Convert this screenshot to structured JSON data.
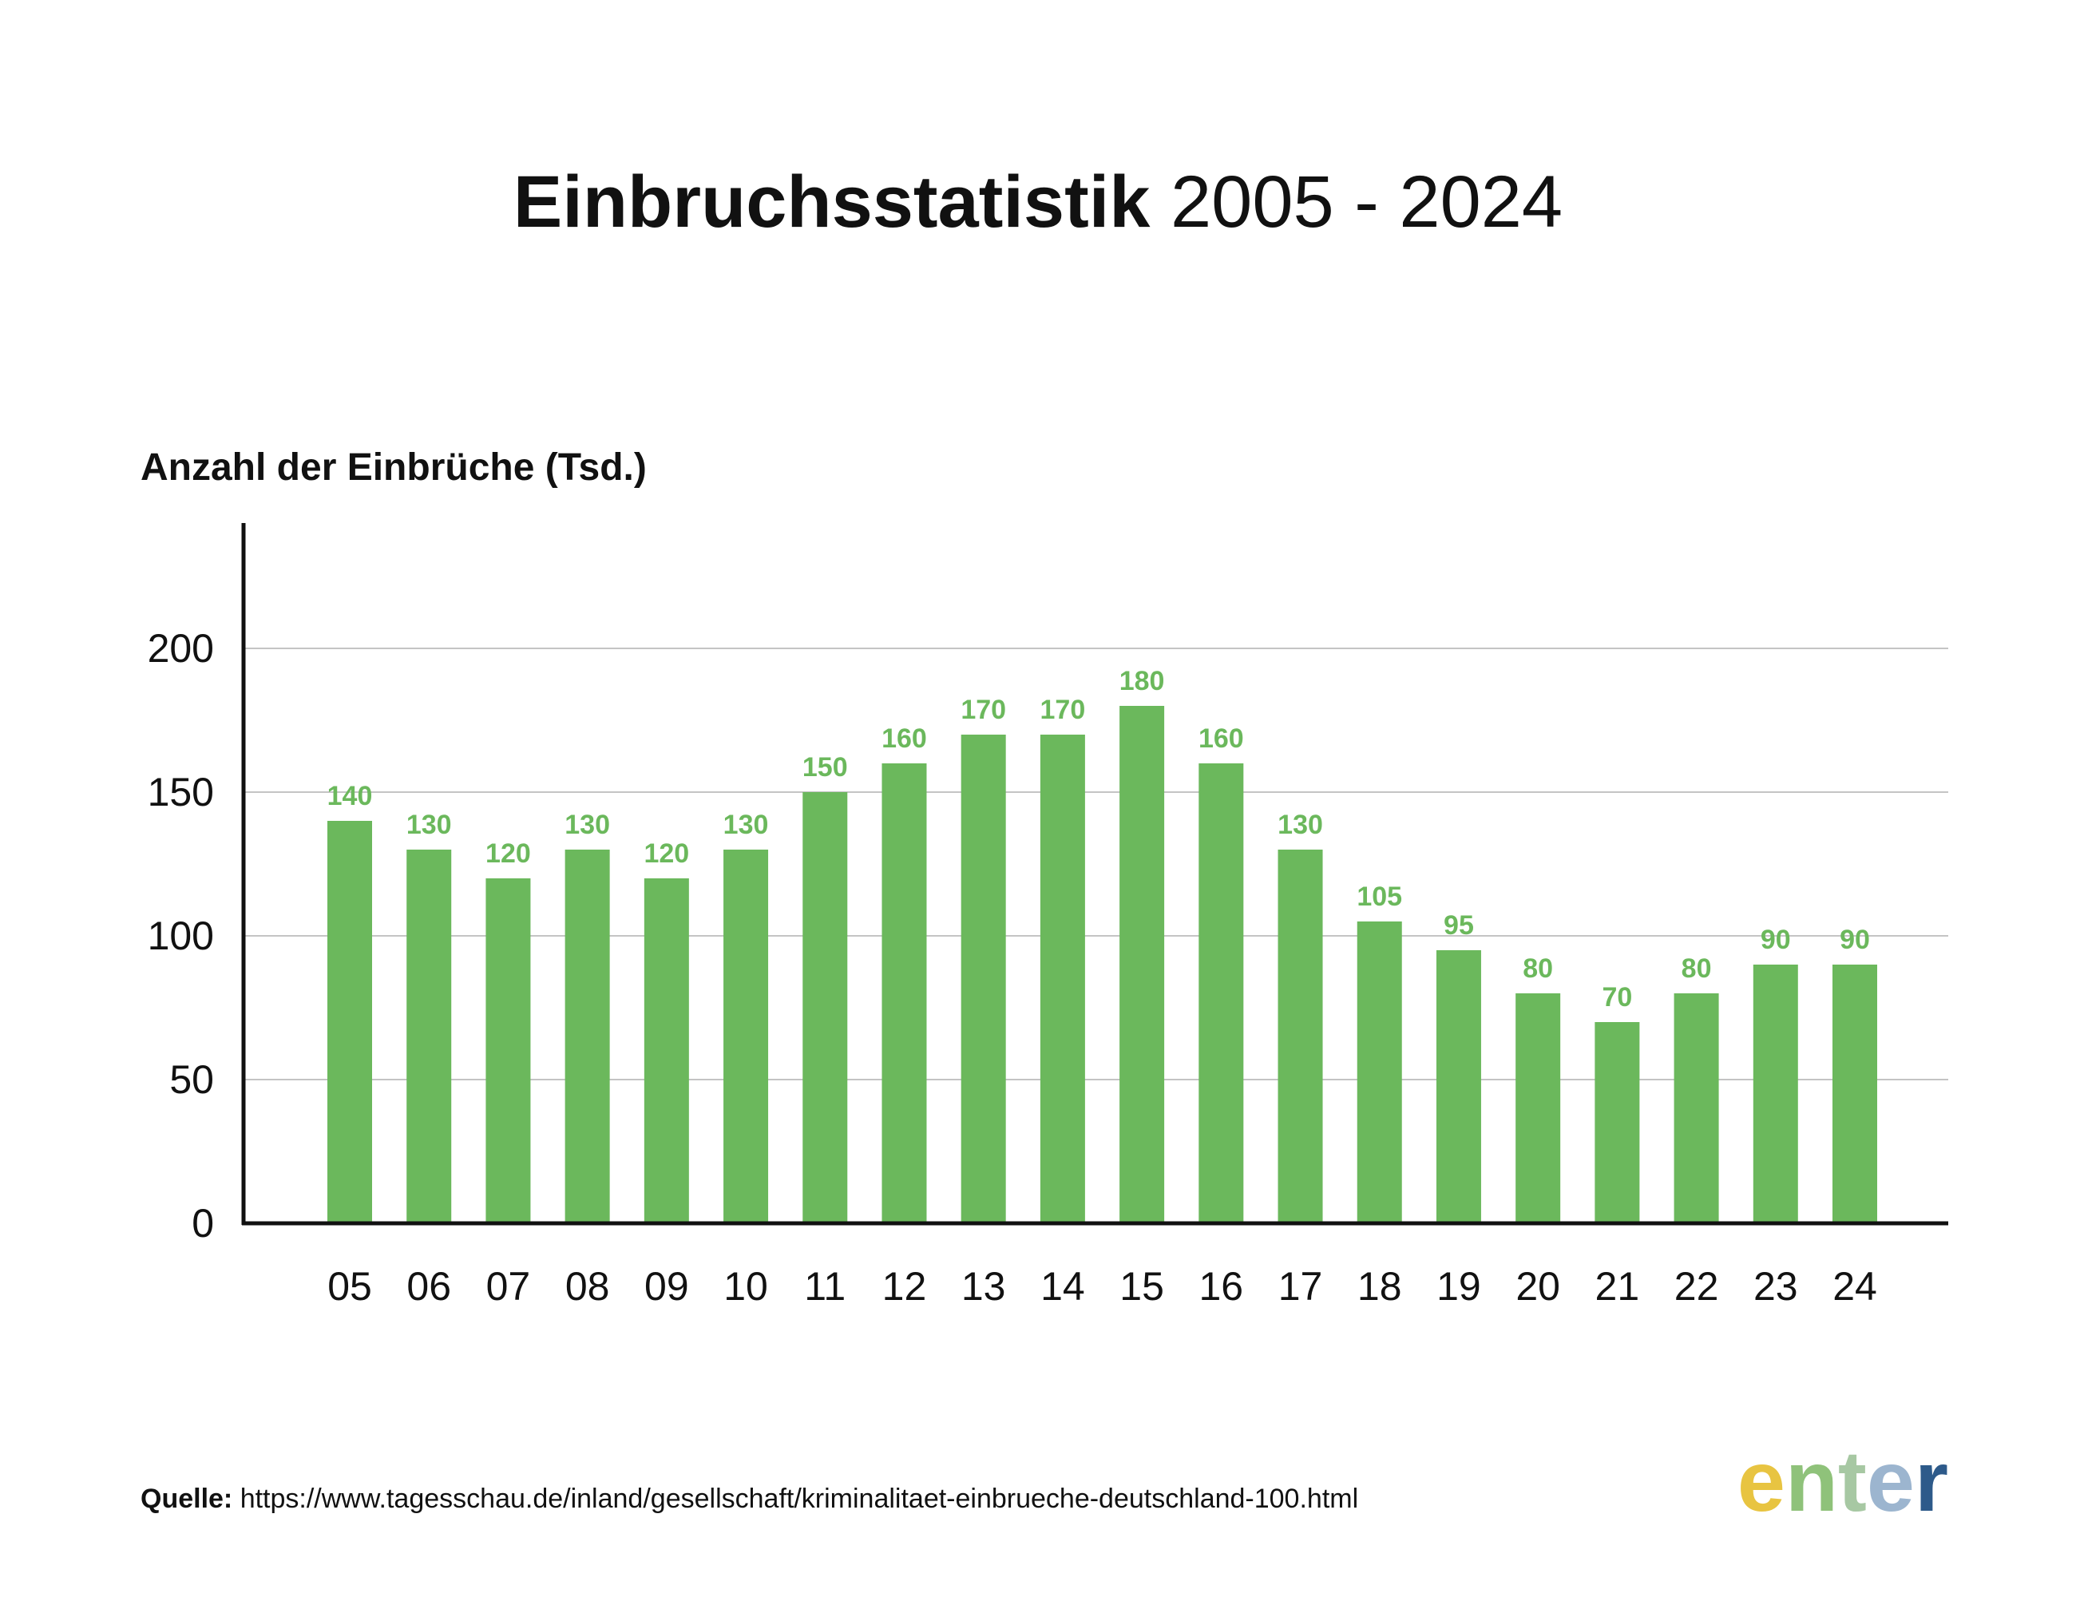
{
  "chart_data": {
    "type": "bar",
    "title": "Einbruchsstatistik",
    "title_years": "2005 - 2024",
    "ylabel": "Anzahl der Einbrüche",
    "ylabel_unit": "(Tsd.)",
    "xlabel": "",
    "ylim": [
      0,
      200
    ],
    "yticks": [
      0,
      50,
      100,
      150,
      200
    ],
    "grid": true,
    "bar_color": "#6bb85c",
    "label_color": "#6bb85c",
    "categories": [
      "05",
      "06",
      "07",
      "08",
      "09",
      "10",
      "11",
      "12",
      "13",
      "14",
      "15",
      "16",
      "17",
      "18",
      "19",
      "20",
      "21",
      "22",
      "23",
      "24"
    ],
    "values": [
      140,
      130,
      120,
      130,
      120,
      130,
      150,
      160,
      170,
      170,
      180,
      160,
      130,
      105,
      95,
      80,
      70,
      80,
      90,
      90
    ],
    "value_labels": [
      "140",
      "130",
      "120",
      "130",
      "120",
      "130",
      "150",
      "160",
      "170",
      "170",
      "180",
      "160",
      "130",
      "105",
      "95",
      "80",
      "70",
      "80",
      "90",
      "90"
    ]
  },
  "source": {
    "label": "Quelle:",
    "url": "https://www.tagesschau.de/inland/gesellschaft/kriminalitaet-einbrueche-deutschland-100.html"
  },
  "logo": {
    "text": "enter",
    "colors": [
      "#e8c441",
      "#8fc27a",
      "#a7c8a3",
      "#9cb5cf",
      "#2d5a8a"
    ]
  }
}
